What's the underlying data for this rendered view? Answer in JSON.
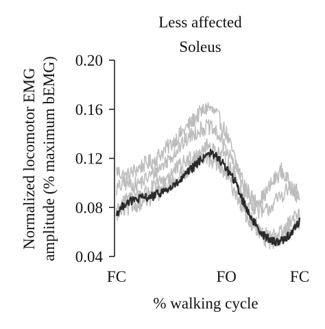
{
  "chart_data": {
    "type": "line",
    "title_lines": [
      "Less affected",
      "Soleus"
    ],
    "xlabel": "% walking cycle",
    "ylabel_lines": [
      "Normalized locomotor EMG",
      "amplitude (% maximum bEMG)"
    ],
    "xlim": [
      0,
      100
    ],
    "ylim": [
      0.04,
      0.2
    ],
    "yticks": [
      0.2,
      0.16,
      0.12,
      0.08,
      0.04
    ],
    "ytick_labels": [
      "0.20",
      "0.16",
      "0.12",
      "0.08",
      "0.04"
    ],
    "xticks": [
      0,
      60,
      100
    ],
    "xtick_labels": [
      "FC",
      "FO",
      "FC"
    ],
    "grid": false,
    "series": [
      {
        "role": "individual",
        "color": "#bdbdbd",
        "x": [
          0,
          5,
          10,
          15,
          20,
          25,
          30,
          35,
          40,
          45,
          50,
          55,
          60,
          65,
          70,
          75,
          80,
          85,
          90,
          95,
          100
        ],
        "y": [
          0.11,
          0.105,
          0.11,
          0.115,
          0.118,
          0.125,
          0.132,
          0.14,
          0.148,
          0.156,
          0.162,
          0.155,
          0.14,
          0.118,
          0.098,
          0.085,
          0.088,
          0.1,
          0.11,
          0.098,
          0.09
        ]
      },
      {
        "role": "individual",
        "color": "#bdbdbd",
        "x": [
          0,
          5,
          10,
          15,
          20,
          25,
          30,
          35,
          40,
          45,
          50,
          55,
          60,
          65,
          70,
          75,
          80,
          85,
          90,
          95,
          100
        ],
        "y": [
          0.095,
          0.1,
          0.098,
          0.102,
          0.108,
          0.114,
          0.122,
          0.13,
          0.138,
          0.143,
          0.146,
          0.14,
          0.128,
          0.112,
          0.096,
          0.08,
          0.075,
          0.082,
          0.09,
          0.096,
          0.085
        ]
      },
      {
        "role": "individual",
        "color": "#bdbdbd",
        "x": [
          0,
          5,
          10,
          15,
          20,
          25,
          30,
          35,
          40,
          45,
          50,
          55,
          60,
          65,
          70,
          75,
          80,
          85,
          90,
          95,
          100
        ],
        "y": [
          0.08,
          0.085,
          0.09,
          0.092,
          0.096,
          0.102,
          0.108,
          0.114,
          0.12,
          0.126,
          0.13,
          0.126,
          0.118,
          0.104,
          0.086,
          0.068,
          0.058,
          0.056,
          0.06,
          0.068,
          0.075
        ]
      },
      {
        "role": "individual",
        "color": "#bdbdbd",
        "x": [
          0,
          5,
          10,
          15,
          20,
          25,
          30,
          35,
          40,
          45,
          50,
          55,
          60,
          65,
          70,
          75,
          80,
          85,
          90,
          95,
          100
        ],
        "y": [
          0.075,
          0.078,
          0.082,
          0.085,
          0.088,
          0.094,
          0.1,
          0.106,
          0.112,
          0.118,
          0.12,
          0.116,
          0.106,
          0.092,
          0.076,
          0.062,
          0.054,
          0.052,
          0.056,
          0.062,
          0.068
        ]
      },
      {
        "role": "mean",
        "color": "#2b2b2b",
        "x": [
          0,
          5,
          10,
          15,
          20,
          25,
          30,
          35,
          40,
          45,
          50,
          55,
          60,
          65,
          70,
          75,
          80,
          85,
          90,
          95,
          100
        ],
        "y": [
          0.075,
          0.084,
          0.086,
          0.088,
          0.089,
          0.093,
          0.096,
          0.102,
          0.11,
          0.117,
          0.125,
          0.121,
          0.112,
          0.1,
          0.082,
          0.068,
          0.058,
          0.052,
          0.053,
          0.058,
          0.069
        ]
      }
    ]
  }
}
